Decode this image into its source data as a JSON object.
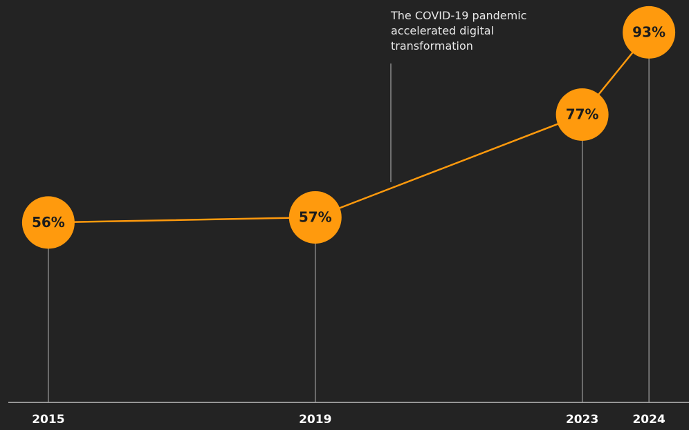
{
  "chart_data": {
    "type": "line",
    "annotation": "The COVID-19 pandemic accelerated digital transformation",
    "x": [
      2015,
      2019,
      2023,
      2024
    ],
    "series": [
      {
        "color": "#ff9a0d",
        "values": [
          56,
          57,
          77,
          93
        ],
        "value_labels": [
          "56%",
          "57%",
          "77%",
          "93%"
        ]
      }
    ],
    "xlim": [
      2014.4,
      2024.6
    ],
    "xticks": [
      2015,
      2019,
      2023,
      2024
    ],
    "ylim": [
      21,
      99.3
    ]
  }
}
